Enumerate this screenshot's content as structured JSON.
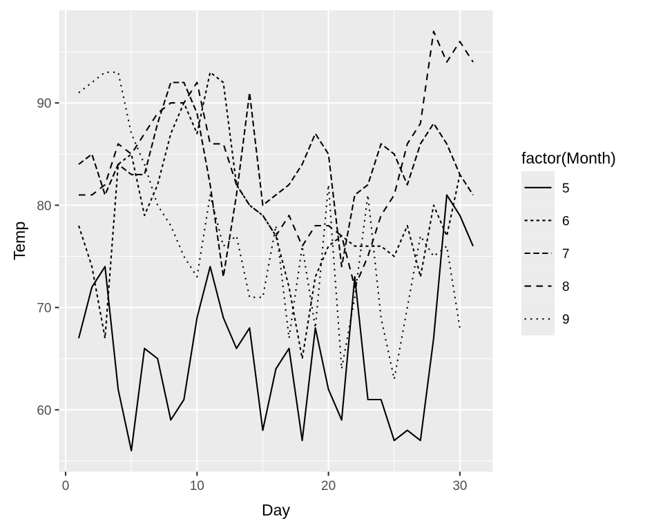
{
  "chart_data": {
    "type": "line",
    "title": "",
    "xlabel": "Day",
    "ylabel": "Temp",
    "legend_title": "factor(Month)",
    "legend_position": "right",
    "grid": true,
    "xlim": [
      -0.5,
      32.5
    ],
    "ylim": [
      53.95,
      99.05
    ],
    "x_ticks": [
      0,
      10,
      20,
      30
    ],
    "x_minor_ticks": [
      5,
      15,
      25
    ],
    "y_ticks": [
      60,
      70,
      80,
      90
    ],
    "y_minor_ticks": [
      55,
      65,
      75,
      85,
      95
    ],
    "colors": {
      "panel_bg": "#EBEBEB",
      "grid": "#FFFFFF",
      "line": "#000000",
      "tick_mark": "#333333",
      "tick_label": "#4D4D4D",
      "legend_key_bg": "#ECECEC",
      "page_bg": "#FFFFFF"
    },
    "series": [
      {
        "name": "5",
        "linetype": "solid",
        "dash": "",
        "x_start": 1,
        "values": [
          67,
          72,
          74,
          62,
          56,
          66,
          65,
          59,
          61,
          69,
          74,
          69,
          66,
          68,
          58,
          64,
          66,
          57,
          68,
          62,
          59,
          73,
          61,
          61,
          57,
          58,
          57,
          67,
          81,
          79,
          76
        ]
      },
      {
        "name": "6",
        "linetype": "dashed-short",
        "dash": "4.3 4.3",
        "x_start": 1,
        "values": [
          78,
          74,
          67,
          84,
          85,
          79,
          82,
          87,
          90,
          87,
          93,
          92,
          82,
          80,
          79,
          77,
          72,
          65,
          73,
          76,
          77,
          76,
          76,
          76,
          75,
          78,
          73,
          80,
          77,
          83
        ]
      },
      {
        "name": "7",
        "linetype": "dashed-medium",
        "dash": "8.5 4.3",
        "x_start": 1,
        "values": [
          84,
          85,
          81,
          84,
          83,
          83,
          88,
          92,
          92,
          89,
          82,
          73,
          81,
          91,
          80,
          81,
          82,
          84,
          87,
          85,
          74,
          81,
          82,
          86,
          85,
          82,
          86,
          88,
          86,
          83,
          81
        ]
      },
      {
        "name": "8",
        "linetype": "dashed-long",
        "dash": "9.5 7.5",
        "x_start": 1,
        "values": [
          81,
          81,
          82,
          86,
          85,
          87,
          89,
          90,
          90,
          92,
          86,
          86,
          82,
          80,
          79,
          77,
          79,
          76,
          78,
          78,
          77,
          72,
          75,
          79,
          81,
          86,
          88,
          97,
          94,
          96,
          94
        ]
      },
      {
        "name": "9",
        "linetype": "dotted",
        "dash": "2.2 6.4",
        "x_start": 1,
        "values": [
          91,
          92,
          93,
          93,
          87,
          84,
          80,
          78,
          75,
          73,
          81,
          76,
          77,
          71,
          71,
          78,
          67,
          76,
          68,
          82,
          64,
          71,
          81,
          69,
          63,
          70,
          77,
          75,
          76,
          68
        ]
      }
    ]
  }
}
